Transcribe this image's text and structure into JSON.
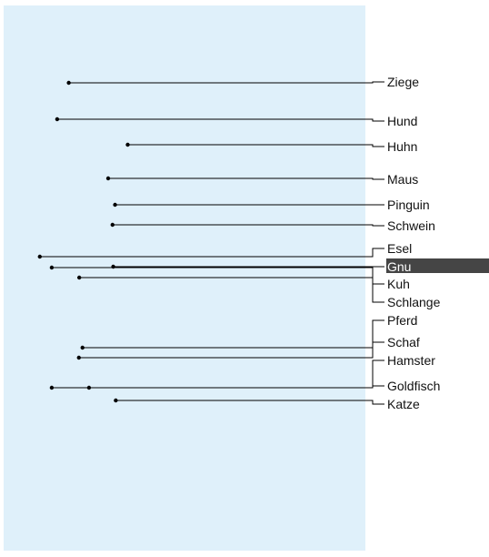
{
  "colors": {
    "panel": "#dff0fa",
    "line": "#000000",
    "highlight": "#454545",
    "highlight_text": "#ffffff"
  },
  "selected_label": "Gnu",
  "animals": [
    {
      "label": "Ziege",
      "point": 0.18
    },
    {
      "label": "Hund",
      "point": 0.148
    },
    {
      "label": "Huhn",
      "point": 0.343
    },
    {
      "label": "Maus",
      "point": 0.289
    },
    {
      "label": "Pinguin",
      "point": 0.308
    },
    {
      "label": "Schwein",
      "point": 0.301
    },
    {
      "label": "Esel",
      "point": 0.1
    },
    {
      "label": "Gnu",
      "point": 0.303
    },
    {
      "label": "Kuh",
      "point": 0.133
    },
    {
      "label": "Schlange",
      "point": 0.209
    },
    {
      "label": "Pferd",
      "point": 0.218
    },
    {
      "label": "Schaf",
      "point": 0.208
    },
    {
      "label": "Hamster",
      "point": 0.236
    },
    {
      "label": "Goldfisch",
      "point": 0.133
    },
    {
      "label": "Katze",
      "point": 0.31
    }
  ]
}
